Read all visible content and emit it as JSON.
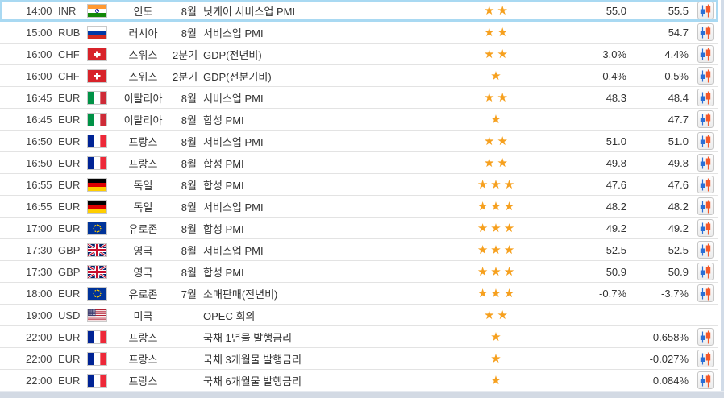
{
  "table": {
    "rows": [
      {
        "time": "14:00",
        "currency": "INR",
        "flag": "in",
        "country": "인도",
        "period": "8월",
        "event": "닛케이 서비스업 PMI",
        "importance": 2,
        "actual": "55.0",
        "previous": "55.5",
        "has_chart": true,
        "selected": true
      },
      {
        "time": "15:00",
        "currency": "RUB",
        "flag": "ru",
        "country": "러시아",
        "period": "8월",
        "event": "서비스업 PMI",
        "importance": 2,
        "actual": "",
        "previous": "54.7",
        "has_chart": true,
        "selected": false
      },
      {
        "time": "16:00",
        "currency": "CHF",
        "flag": "ch",
        "country": "스위스",
        "period": "2분기",
        "event": "GDP(전년비)",
        "importance": 2,
        "actual": "3.0%",
        "previous": "4.4%",
        "has_chart": true,
        "selected": false
      },
      {
        "time": "16:00",
        "currency": "CHF",
        "flag": "ch",
        "country": "스위스",
        "period": "2분기",
        "event": "GDP(전분기비)",
        "importance": 1,
        "actual": "0.4%",
        "previous": "0.5%",
        "has_chart": true,
        "selected": false
      },
      {
        "time": "16:45",
        "currency": "EUR",
        "flag": "it",
        "country": "이탈리아",
        "period": "8월",
        "event": "서비스업 PMI",
        "importance": 2,
        "actual": "48.3",
        "previous": "48.4",
        "has_chart": true,
        "selected": false
      },
      {
        "time": "16:45",
        "currency": "EUR",
        "flag": "it",
        "country": "이탈리아",
        "period": "8월",
        "event": "합성 PMI",
        "importance": 1,
        "actual": "",
        "previous": "47.7",
        "has_chart": true,
        "selected": false
      },
      {
        "time": "16:50",
        "currency": "EUR",
        "flag": "fr",
        "country": "프랑스",
        "period": "8월",
        "event": "서비스업 PMI",
        "importance": 2,
        "actual": "51.0",
        "previous": "51.0",
        "has_chart": true,
        "selected": false
      },
      {
        "time": "16:50",
        "currency": "EUR",
        "flag": "fr",
        "country": "프랑스",
        "period": "8월",
        "event": "합성 PMI",
        "importance": 2,
        "actual": "49.8",
        "previous": "49.8",
        "has_chart": true,
        "selected": false
      },
      {
        "time": "16:55",
        "currency": "EUR",
        "flag": "de",
        "country": "독일",
        "period": "8월",
        "event": "합성 PMI",
        "importance": 3,
        "actual": "47.6",
        "previous": "47.6",
        "has_chart": true,
        "selected": false
      },
      {
        "time": "16:55",
        "currency": "EUR",
        "flag": "de",
        "country": "독일",
        "period": "8월",
        "event": "서비스업 PMI",
        "importance": 3,
        "actual": "48.2",
        "previous": "48.2",
        "has_chart": true,
        "selected": false
      },
      {
        "time": "17:00",
        "currency": "EUR",
        "flag": "eu",
        "country": "유로존",
        "period": "8월",
        "event": "합성 PMI",
        "importance": 3,
        "actual": "49.2",
        "previous": "49.2",
        "has_chart": true,
        "selected": false
      },
      {
        "time": "17:30",
        "currency": "GBP",
        "flag": "gb",
        "country": "영국",
        "period": "8월",
        "event": "서비스업 PMI",
        "importance": 3,
        "actual": "52.5",
        "previous": "52.5",
        "has_chart": true,
        "selected": false
      },
      {
        "time": "17:30",
        "currency": "GBP",
        "flag": "gb",
        "country": "영국",
        "period": "8월",
        "event": "합성 PMI",
        "importance": 3,
        "actual": "50.9",
        "previous": "50.9",
        "has_chart": true,
        "selected": false
      },
      {
        "time": "18:00",
        "currency": "EUR",
        "flag": "eu",
        "country": "유로존",
        "period": "7월",
        "event": "소매판매(전년비)",
        "importance": 3,
        "actual": "-0.7%",
        "previous": "-3.7%",
        "has_chart": true,
        "selected": false
      },
      {
        "time": "19:00",
        "currency": "USD",
        "flag": "us",
        "country": "미국",
        "period": "",
        "event": "OPEC 회의",
        "importance": 2,
        "actual": "",
        "previous": "",
        "has_chart": false,
        "selected": false
      },
      {
        "time": "22:00",
        "currency": "EUR",
        "flag": "fr",
        "country": "프랑스",
        "period": "",
        "event": "국채 1년물 발행금리",
        "importance": 1,
        "actual": "",
        "previous": "0.658%",
        "has_chart": true,
        "selected": false
      },
      {
        "time": "22:00",
        "currency": "EUR",
        "flag": "fr",
        "country": "프랑스",
        "period": "",
        "event": "국채 3개월물 발행금리",
        "importance": 1,
        "actual": "",
        "previous": "-0.027%",
        "has_chart": true,
        "selected": false
      },
      {
        "time": "22:00",
        "currency": "EUR",
        "flag": "fr",
        "country": "프랑스",
        "period": "",
        "event": "국채 6개월물 발행금리",
        "importance": 1,
        "actual": "",
        "previous": "0.084%",
        "has_chart": true,
        "selected": false
      }
    ]
  },
  "icons": {
    "chart_icon": "candlestick-chart-icon",
    "star_icon": "importance-star-icon",
    "star_glyph": "★"
  },
  "colors": {
    "star": "#F6A01E",
    "candle_blue": "#2A6FD6",
    "candle_orange": "#F4582A",
    "row_highlight": "#A9D9F2",
    "row_separator": "#E3E3E3",
    "footer_bar": "#D3DAE4",
    "text": "#333333"
  }
}
